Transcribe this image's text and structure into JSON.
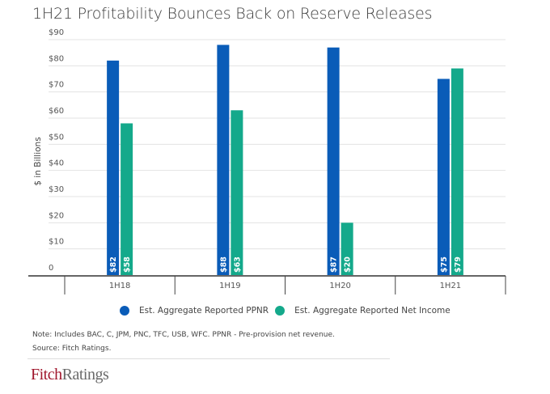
{
  "chart_data": {
    "type": "bar",
    "title": "1H21 Profitability Bounces Back on Reserve Releases",
    "xlabel": "",
    "ylabel": "$ in Billions",
    "ylim": [
      0,
      90
    ],
    "yticks": [
      0,
      10,
      20,
      30,
      40,
      50,
      60,
      70,
      80,
      90
    ],
    "ytick_labels": [
      "0",
      "$10",
      "$20",
      "$30",
      "$40",
      "$50",
      "$60",
      "$70",
      "$80",
      "$90"
    ],
    "grid": true,
    "categories": [
      "1H18",
      "1H19",
      "1H20",
      "1H21"
    ],
    "series": [
      {
        "name": "Est. Aggregate Reported PPNR",
        "color": "#0a5cb8",
        "values": [
          82,
          88,
          87,
          75
        ],
        "labels": [
          "$82",
          "$88",
          "$87",
          "$75"
        ]
      },
      {
        "name": "Est. Aggregate Reported Net Income",
        "color": "#14a98b",
        "values": [
          58,
          63,
          20,
          79
        ],
        "labels": [
          "$58",
          "$63",
          "$20",
          "$79"
        ]
      }
    ],
    "legend_position": "bottom"
  },
  "footer": {
    "note": "Note: Includes BAC, C, JPM, PNC, TFC, USB, WFC. PPNR - Pre-provision net revenue.",
    "source": "Source: Fitch Ratings.",
    "logo_part1": "Fitch",
    "logo_part2": "Ratings"
  }
}
